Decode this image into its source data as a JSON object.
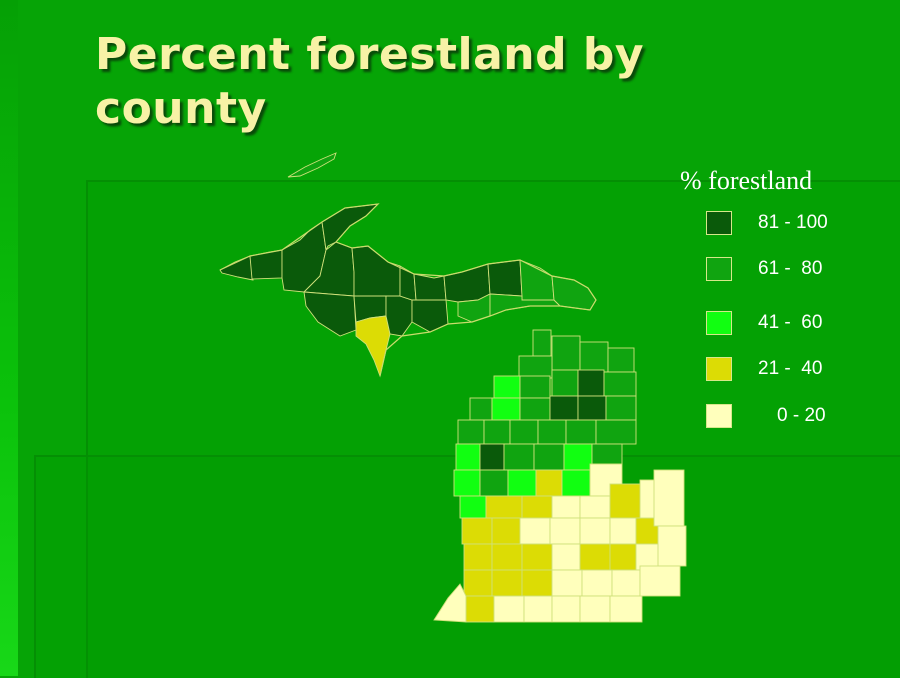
{
  "slide": {
    "title": "Percent forestland by county"
  },
  "legend": {
    "title": "% forestland",
    "classes": [
      {
        "label": "81 - 100",
        "color": "#0a5a0a"
      },
      {
        "label": "61 -  80",
        "color": "#10a410"
      },
      {
        "label": "41 -  60",
        "color": "#11ff11"
      },
      {
        "label": "21 -  40",
        "color": "#dcdc05"
      },
      {
        "label": "0 - 20",
        "color": "#ffffbc"
      }
    ]
  },
  "colors": {
    "background": "#06a406",
    "title_text": "#f7f2a6",
    "county_border": "#cfe07a"
  }
}
